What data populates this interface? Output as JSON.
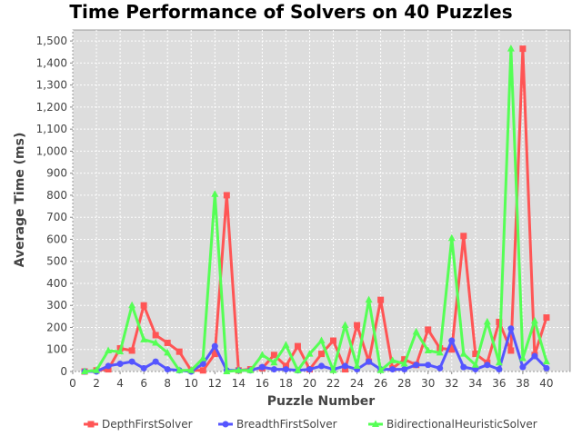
{
  "chart_data": {
    "type": "line",
    "title": "Time Performance of Solvers on 40 Puzzles",
    "xlabel": "Puzzle Number",
    "ylabel": "Average Time (ms)",
    "xlim": [
      0,
      42
    ],
    "ylim": [
      0,
      1550
    ],
    "xticks": [
      0,
      2,
      4,
      6,
      8,
      10,
      12,
      14,
      16,
      18,
      20,
      22,
      24,
      26,
      28,
      30,
      32,
      34,
      36,
      38,
      40
    ],
    "yticks": [
      0,
      100,
      200,
      300,
      400,
      500,
      600,
      700,
      800,
      900,
      1000,
      1100,
      1200,
      1300,
      1400,
      1500
    ],
    "ytick_labels": [
      "0",
      "100",
      "200",
      "300",
      "400",
      "500",
      "600",
      "700",
      "800",
      "900",
      "1,000",
      "1,100",
      "1,200",
      "1,300",
      "1,400",
      "1,500"
    ],
    "grid": true,
    "legend_position": "bottom",
    "plot_background": "#dddddd",
    "x": [
      1,
      2,
      3,
      4,
      5,
      6,
      7,
      8,
      9,
      10,
      11,
      12,
      13,
      14,
      15,
      16,
      17,
      18,
      19,
      20,
      21,
      22,
      23,
      24,
      25,
      26,
      27,
      28,
      29,
      30,
      31,
      32,
      33,
      34,
      35,
      36,
      37,
      38,
      39,
      40
    ],
    "series": [
      {
        "name": "DepthFirstSolver",
        "color": "#ff5555",
        "marker": "square",
        "values": [
          0,
          5,
          10,
          105,
          95,
          300,
          165,
          130,
          90,
          5,
          5,
          80,
          800,
          5,
          10,
          15,
          75,
          25,
          115,
          10,
          80,
          140,
          10,
          210,
          45,
          325,
          15,
          55,
          30,
          190,
          105,
          100,
          615,
          80,
          40,
          225,
          95,
          1465,
          75,
          245
        ]
      },
      {
        "name": "BreadthFirstSolver",
        "color": "#5555ff",
        "marker": "circle",
        "values": [
          0,
          0,
          25,
          35,
          45,
          15,
          45,
          10,
          5,
          0,
          35,
          115,
          5,
          5,
          5,
          20,
          10,
          10,
          5,
          10,
          25,
          10,
          25,
          10,
          45,
          10,
          10,
          10,
          30,
          30,
          15,
          140,
          20,
          10,
          30,
          10,
          195,
          20,
          70,
          15
        ]
      },
      {
        "name": "BidirectionalHeuristicSolver",
        "color": "#55ff55",
        "marker": "triangle",
        "values": [
          0,
          5,
          95,
          90,
          300,
          145,
          130,
          85,
          5,
          5,
          60,
          805,
          0,
          5,
          5,
          75,
          40,
          120,
          5,
          80,
          140,
          5,
          210,
          25,
          325,
          5,
          50,
          35,
          180,
          95,
          85,
          605,
          80,
          30,
          225,
          40,
          1465,
          60,
          230,
          45
        ]
      }
    ]
  }
}
